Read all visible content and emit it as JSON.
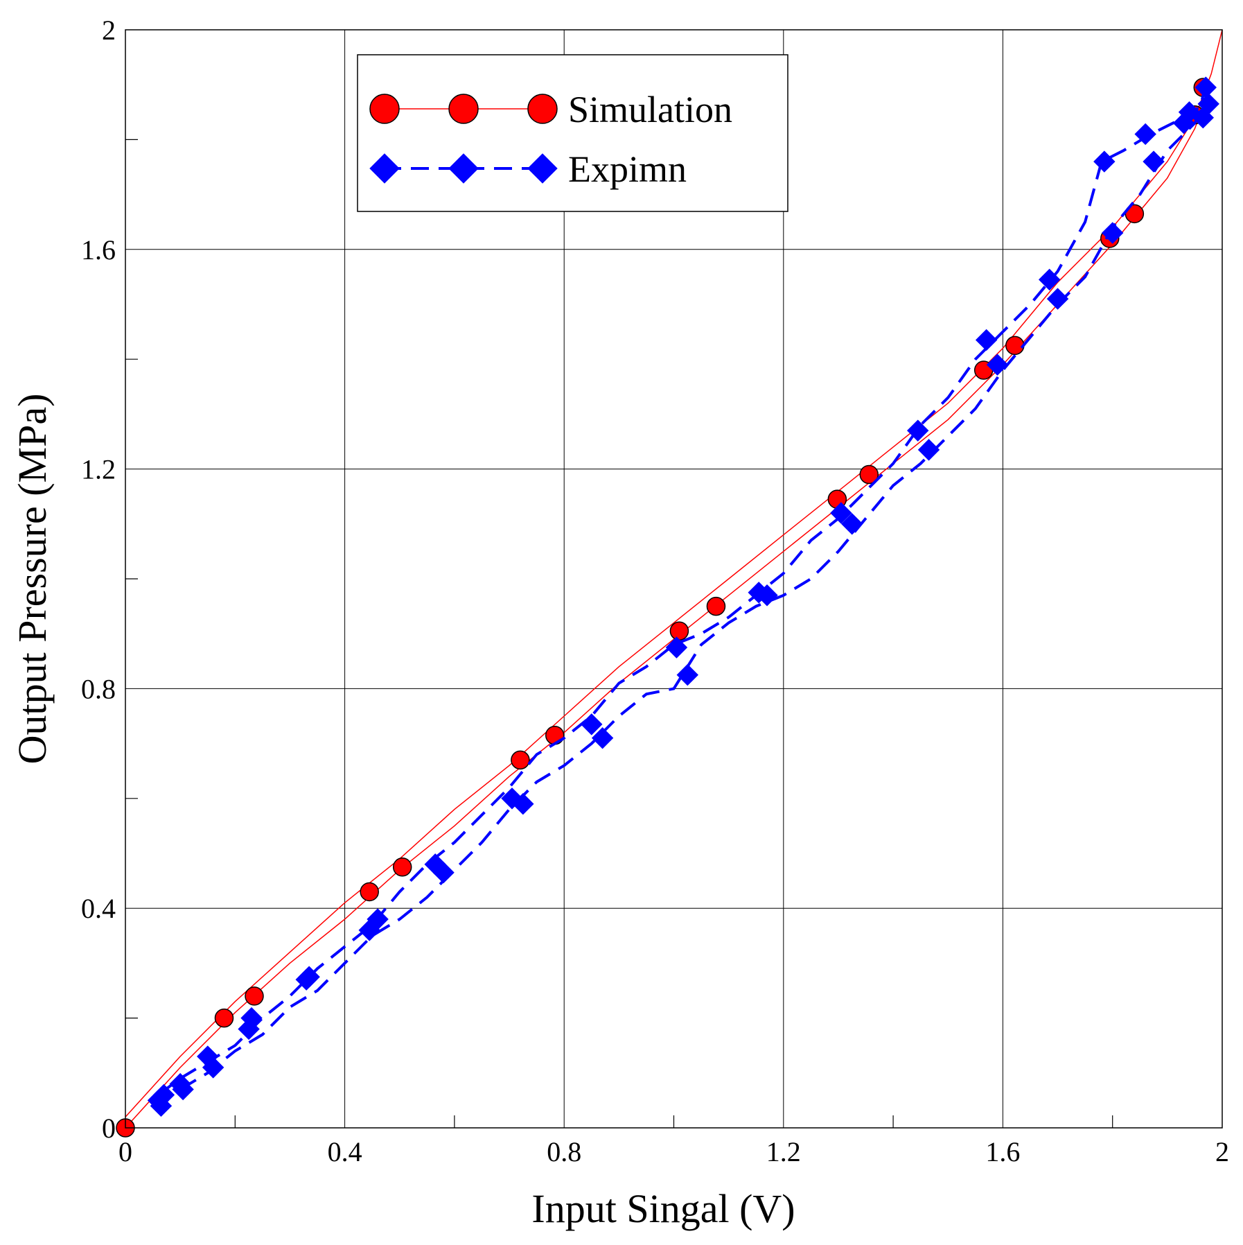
{
  "chart_data": {
    "type": "line",
    "title": "",
    "xlabel": "Input Singal (V)",
    "ylabel": "Output Pressure (MPa)",
    "xlim": [
      0,
      2
    ],
    "ylim": [
      0,
      2
    ],
    "x_ticks": [
      {
        "value": 0,
        "label": "0"
      },
      {
        "value": 0.4,
        "label": "0.4"
      },
      {
        "value": 0.8,
        "label": "0.8"
      },
      {
        "value": 1.2,
        "label": "1.2"
      },
      {
        "value": 1.6,
        "label": "1.6"
      },
      {
        "value": 2,
        "label": "2"
      }
    ],
    "y_ticks": [
      {
        "value": 0,
        "label": "0"
      },
      {
        "value": 0.4,
        "label": "0.4"
      },
      {
        "value": 0.8,
        "label": "0.8"
      },
      {
        "value": 1.2,
        "label": "1.2"
      },
      {
        "value": 1.6,
        "label": "1.6"
      },
      {
        "value": 2,
        "label": "2"
      }
    ],
    "x_minor_ticks": [
      0.2,
      0.6,
      1.0,
      1.4,
      1.8
    ],
    "y_minor_ticks": [
      0.2,
      0.6,
      1.0,
      1.4,
      1.8
    ],
    "grid": true,
    "legend_position": "top-left",
    "series": [
      {
        "name": "Simulation",
        "color": "#ff0000",
        "marker": "circle",
        "line_style": "solid",
        "line_up": [
          [
            0,
            0.02
          ],
          [
            0.1,
            0.13
          ],
          [
            0.2,
            0.23
          ],
          [
            0.3,
            0.32
          ],
          [
            0.4,
            0.41
          ],
          [
            0.5,
            0.49
          ],
          [
            0.6,
            0.58
          ],
          [
            0.7,
            0.66
          ],
          [
            0.8,
            0.75
          ],
          [
            0.9,
            0.84
          ],
          [
            1.0,
            0.92
          ],
          [
            1.1,
            1.0
          ],
          [
            1.2,
            1.08
          ],
          [
            1.3,
            1.16
          ],
          [
            1.4,
            1.24
          ],
          [
            1.5,
            1.32
          ],
          [
            1.6,
            1.42
          ],
          [
            1.7,
            1.54
          ],
          [
            1.8,
            1.64
          ],
          [
            1.9,
            1.76
          ],
          [
            1.95,
            1.84
          ],
          [
            1.98,
            1.92
          ],
          [
            2.0,
            2.0
          ]
        ],
        "line_down": [
          [
            0,
            0
          ],
          [
            0.1,
            0.11
          ],
          [
            0.2,
            0.21
          ],
          [
            0.3,
            0.3
          ],
          [
            0.4,
            0.38
          ],
          [
            0.5,
            0.47
          ],
          [
            0.6,
            0.55
          ],
          [
            0.7,
            0.64
          ],
          [
            0.8,
            0.72
          ],
          [
            0.9,
            0.81
          ],
          [
            1.0,
            0.89
          ],
          [
            1.1,
            0.97
          ],
          [
            1.2,
            1.05
          ],
          [
            1.3,
            1.13
          ],
          [
            1.4,
            1.21
          ],
          [
            1.5,
            1.29
          ],
          [
            1.6,
            1.39
          ],
          [
            1.7,
            1.5
          ],
          [
            1.8,
            1.61
          ],
          [
            1.9,
            1.73
          ],
          [
            1.95,
            1.82
          ],
          [
            1.98,
            1.9
          ]
        ],
        "markers": [
          [
            0,
            0
          ],
          [
            0.18,
            0.2
          ],
          [
            0.235,
            0.24
          ],
          [
            0.445,
            0.43
          ],
          [
            0.505,
            0.475
          ],
          [
            0.72,
            0.67
          ],
          [
            0.783,
            0.715
          ],
          [
            1.01,
            0.905
          ],
          [
            1.077,
            0.95
          ],
          [
            1.298,
            1.145
          ],
          [
            1.356,
            1.19
          ],
          [
            1.565,
            1.38
          ],
          [
            1.622,
            1.425
          ],
          [
            1.795,
            1.62
          ],
          [
            1.84,
            1.665
          ],
          [
            1.95,
            1.845
          ],
          [
            1.965,
            1.895
          ]
        ]
      },
      {
        "name": "Expimn",
        "color": "#0000ff",
        "marker": "diamond",
        "line_style": "dashed",
        "line_up": [
          [
            0.06,
            0.06
          ],
          [
            0.1,
            0.09
          ],
          [
            0.15,
            0.12
          ],
          [
            0.2,
            0.15
          ],
          [
            0.25,
            0.2
          ],
          [
            0.3,
            0.24
          ],
          [
            0.35,
            0.29
          ],
          [
            0.4,
            0.33
          ],
          [
            0.45,
            0.37
          ],
          [
            0.5,
            0.43
          ],
          [
            0.55,
            0.48
          ],
          [
            0.6,
            0.52
          ],
          [
            0.65,
            0.57
          ],
          [
            0.7,
            0.62
          ],
          [
            0.75,
            0.68
          ],
          [
            0.8,
            0.71
          ],
          [
            0.85,
            0.75
          ],
          [
            0.9,
            0.81
          ],
          [
            0.95,
            0.84
          ],
          [
            1.0,
            0.88
          ],
          [
            1.05,
            0.9
          ],
          [
            1.1,
            0.93
          ],
          [
            1.15,
            0.97
          ],
          [
            1.2,
            1.01
          ],
          [
            1.25,
            1.07
          ],
          [
            1.3,
            1.11
          ],
          [
            1.35,
            1.16
          ],
          [
            1.4,
            1.21
          ],
          [
            1.45,
            1.28
          ],
          [
            1.5,
            1.33
          ],
          [
            1.55,
            1.4
          ],
          [
            1.6,
            1.45
          ],
          [
            1.65,
            1.5
          ],
          [
            1.7,
            1.56
          ],
          [
            1.75,
            1.65
          ],
          [
            1.78,
            1.76
          ],
          [
            1.82,
            1.78
          ],
          [
            1.87,
            1.81
          ],
          [
            1.93,
            1.84
          ],
          [
            1.96,
            1.86
          ],
          [
            1.97,
            1.9
          ]
        ],
        "line_down": [
          [
            0.06,
            0.04
          ],
          [
            0.1,
            0.07
          ],
          [
            0.15,
            0.1
          ],
          [
            0.2,
            0.14
          ],
          [
            0.25,
            0.17
          ],
          [
            0.3,
            0.22
          ],
          [
            0.35,
            0.25
          ],
          [
            0.4,
            0.3
          ],
          [
            0.45,
            0.35
          ],
          [
            0.5,
            0.38
          ],
          [
            0.55,
            0.42
          ],
          [
            0.6,
            0.47
          ],
          [
            0.65,
            0.52
          ],
          [
            0.7,
            0.58
          ],
          [
            0.75,
            0.63
          ],
          [
            0.8,
            0.66
          ],
          [
            0.85,
            0.7
          ],
          [
            0.9,
            0.75
          ],
          [
            0.95,
            0.79
          ],
          [
            1.0,
            0.8
          ],
          [
            1.05,
            0.88
          ],
          [
            1.1,
            0.92
          ],
          [
            1.15,
            0.95
          ],
          [
            1.2,
            0.97
          ],
          [
            1.25,
            1.0
          ],
          [
            1.3,
            1.05
          ],
          [
            1.35,
            1.11
          ],
          [
            1.4,
            1.17
          ],
          [
            1.45,
            1.21
          ],
          [
            1.5,
            1.26
          ],
          [
            1.55,
            1.31
          ],
          [
            1.6,
            1.38
          ],
          [
            1.65,
            1.44
          ],
          [
            1.7,
            1.5
          ],
          [
            1.75,
            1.55
          ],
          [
            1.8,
            1.64
          ],
          [
            1.85,
            1.7
          ],
          [
            1.9,
            1.78
          ],
          [
            1.95,
            1.83
          ],
          [
            1.97,
            1.87
          ]
        ],
        "markers": [
          [
            0.06,
            0.05
          ],
          [
            0.065,
            0.04
          ],
          [
            0.07,
            0.06
          ],
          [
            0.1,
            0.08
          ],
          [
            0.105,
            0.07
          ],
          [
            0.15,
            0.13
          ],
          [
            0.16,
            0.11
          ],
          [
            0.225,
            0.18
          ],
          [
            0.23,
            0.2
          ],
          [
            0.33,
            0.27
          ],
          [
            0.335,
            0.275
          ],
          [
            0.445,
            0.36
          ],
          [
            0.46,
            0.38
          ],
          [
            0.565,
            0.48
          ],
          [
            0.58,
            0.465
          ],
          [
            0.705,
            0.6
          ],
          [
            0.725,
            0.59
          ],
          [
            0.85,
            0.735
          ],
          [
            0.87,
            0.71
          ],
          [
            1.005,
            0.875
          ],
          [
            1.025,
            0.825
          ],
          [
            1.155,
            0.975
          ],
          [
            1.17,
            0.97
          ],
          [
            1.305,
            1.12
          ],
          [
            1.325,
            1.1
          ],
          [
            1.445,
            1.27
          ],
          [
            1.465,
            1.235
          ],
          [
            1.57,
            1.435
          ],
          [
            1.59,
            1.39
          ],
          [
            1.685,
            1.545
          ],
          [
            1.7,
            1.51
          ],
          [
            1.785,
            1.76
          ],
          [
            1.8,
            1.63
          ],
          [
            1.86,
            1.81
          ],
          [
            1.875,
            1.76
          ],
          [
            1.93,
            1.83
          ],
          [
            1.94,
            1.85
          ],
          [
            1.965,
            1.84
          ],
          [
            1.975,
            1.865
          ],
          [
            1.97,
            1.895
          ]
        ]
      }
    ]
  }
}
